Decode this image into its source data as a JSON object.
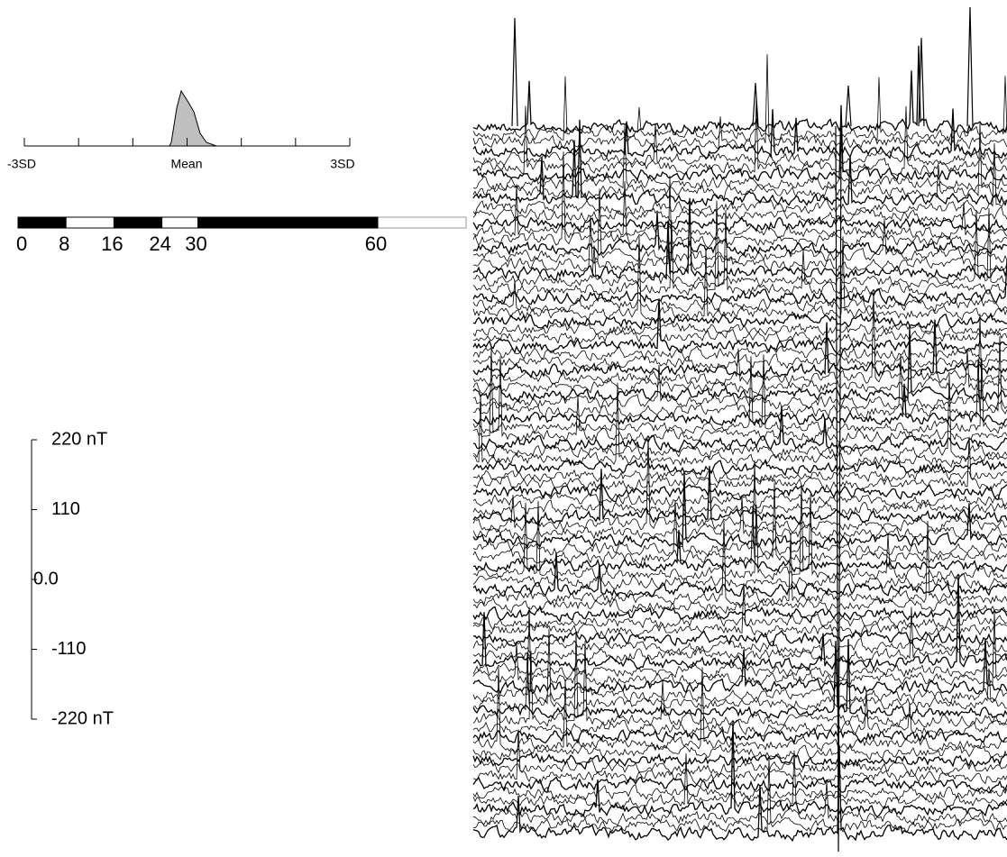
{
  "histogram": {
    "labels": [
      "-3SD",
      "Mean",
      "3SD"
    ]
  },
  "scale_bar": {
    "ticks": [
      0,
      8,
      16,
      24,
      30,
      60
    ]
  },
  "amplitude_scale": {
    "ticks": [
      {
        "value": 220,
        "label": "220 nT"
      },
      {
        "value": 110,
        "label": "110"
      },
      {
        "value": 0,
        "label": "0.0"
      },
      {
        "value": -110,
        "label": "-110"
      },
      {
        "value": -220,
        "label": "-220 nT"
      }
    ]
  }
}
